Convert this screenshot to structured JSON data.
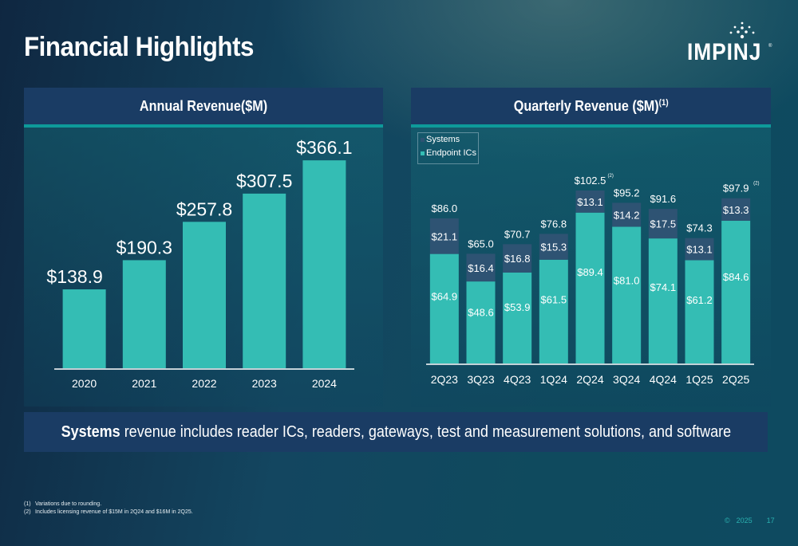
{
  "page": {
    "title": "Financial Highlights",
    "logo_text": "IMPINJ",
    "logo_mark": "®",
    "colors": {
      "endpoint_ics": "#34bdb4",
      "systems": "#2e5373",
      "panel_header": "#1a3c64",
      "accent_rule": "#0e9a9a",
      "footer_text": "#2ab0b0"
    }
  },
  "note_bar": {
    "bold": "Systems",
    "rest": " revenue includes reader ICs, readers, gateways, test and measurement solutions, and software"
  },
  "footnotes": [
    {
      "num": "(1)",
      "text": "Variations due to rounding."
    },
    {
      "num": "(2)",
      "text": "Includes licensing revenue of $15M in 2Q24 and $16M in 2Q25."
    }
  ],
  "footer": {
    "copyright": "©",
    "year": "2025",
    "page_number": "17"
  },
  "chart_data": [
    {
      "type": "bar",
      "title": "Annual Revenue($M)",
      "xlabel": "",
      "ylabel": "",
      "grid": false,
      "categories": [
        "2020",
        "2021",
        "2022",
        "2023",
        "2024"
      ],
      "values": [
        138.9,
        190.3,
        257.8,
        307.5,
        366.1
      ],
      "labels": [
        "$138.9",
        "$190.3",
        "$257.8",
        "$307.5",
        "$366.1"
      ],
      "ylim": [
        0,
        400
      ]
    },
    {
      "type": "bar",
      "stacked": true,
      "title": "Quarterly Revenue ($M)",
      "title_superscript": "(1)",
      "xlabel": "",
      "ylabel": "",
      "grid": false,
      "legend": {
        "placement": "top-left",
        "entries": [
          "Systems",
          "Endpoint ICs"
        ]
      },
      "categories": [
        "2Q23",
        "3Q23",
        "4Q23",
        "1Q24",
        "2Q24",
        "3Q24",
        "4Q24",
        "1Q25",
        "2Q25"
      ],
      "series": [
        {
          "name": "Endpoint ICs",
          "values": [
            64.9,
            48.6,
            53.9,
            61.5,
            89.4,
            81.0,
            74.1,
            61.2,
            84.6
          ]
        },
        {
          "name": "Systems",
          "values": [
            21.1,
            16.4,
            16.8,
            15.3,
            13.1,
            14.2,
            17.5,
            13.1,
            13.3
          ]
        }
      ],
      "totals": [
        86.0,
        65.0,
        70.7,
        76.8,
        102.5,
        95.2,
        91.6,
        74.3,
        97.9
      ],
      "total_superscripts": [
        "",
        "",
        "",
        "",
        "(2)",
        "",
        "",
        "",
        "(2)"
      ],
      "ylim": [
        0,
        110
      ]
    }
  ]
}
